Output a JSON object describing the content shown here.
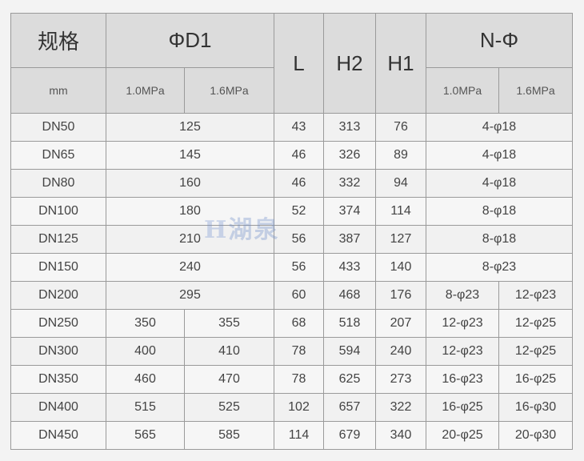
{
  "header": {
    "spec": "规格",
    "d1": "ΦD1",
    "l": "L",
    "h2": "H2",
    "h1": "H1",
    "n_phi": "N-Φ",
    "unit": "mm",
    "p10": "1.0MPa",
    "p16": "1.6MPa"
  },
  "watermark": {
    "logo": "H",
    "text": "湖泉"
  },
  "rows": [
    {
      "dn": "DN50",
      "d1": "125",
      "l": "43",
      "h2": "313",
      "h1": "76",
      "n": "4-φ18"
    },
    {
      "dn": "DN65",
      "d1": "145",
      "l": "46",
      "h2": "326",
      "h1": "89",
      "n": "4-φ18"
    },
    {
      "dn": "DN80",
      "d1": "160",
      "l": "46",
      "h2": "332",
      "h1": "94",
      "n": "4-φ18"
    },
    {
      "dn": "DN100",
      "d1": "180",
      "l": "52",
      "h2": "374",
      "h1": "114",
      "n": "8-φ18"
    },
    {
      "dn": "DN125",
      "d1": "210",
      "l": "56",
      "h2": "387",
      "h1": "127",
      "n": "8-φ18"
    },
    {
      "dn": "DN150",
      "d1": "240",
      "l": "56",
      "h2": "433",
      "h1": "140",
      "n": "8-φ23"
    },
    {
      "dn": "DN200",
      "d1": "295",
      "l": "60",
      "h2": "468",
      "h1": "176",
      "n10": "8-φ23",
      "n16": "12-φ23"
    },
    {
      "dn": "DN250",
      "d1_10": "350",
      "d1_16": "355",
      "l": "68",
      "h2": "518",
      "h1": "207",
      "n10": "12-φ23",
      "n16": "12-φ25"
    },
    {
      "dn": "DN300",
      "d1_10": "400",
      "d1_16": "410",
      "l": "78",
      "h2": "594",
      "h1": "240",
      "n10": "12-φ23",
      "n16": "12-φ25"
    },
    {
      "dn": "DN350",
      "d1_10": "460",
      "d1_16": "470",
      "l": "78",
      "h2": "625",
      "h1": "273",
      "n10": "16-φ23",
      "n16": "16-φ25"
    },
    {
      "dn": "DN400",
      "d1_10": "515",
      "d1_16": "525",
      "l": "102",
      "h2": "657",
      "h1": "322",
      "n10": "16-φ25",
      "n16": "16-φ30"
    },
    {
      "dn": "DN450",
      "d1_10": "565",
      "d1_16": "585",
      "l": "114",
      "h2": "679",
      "h1": "340",
      "n10": "20-φ25",
      "n16": "20-φ30"
    }
  ]
}
